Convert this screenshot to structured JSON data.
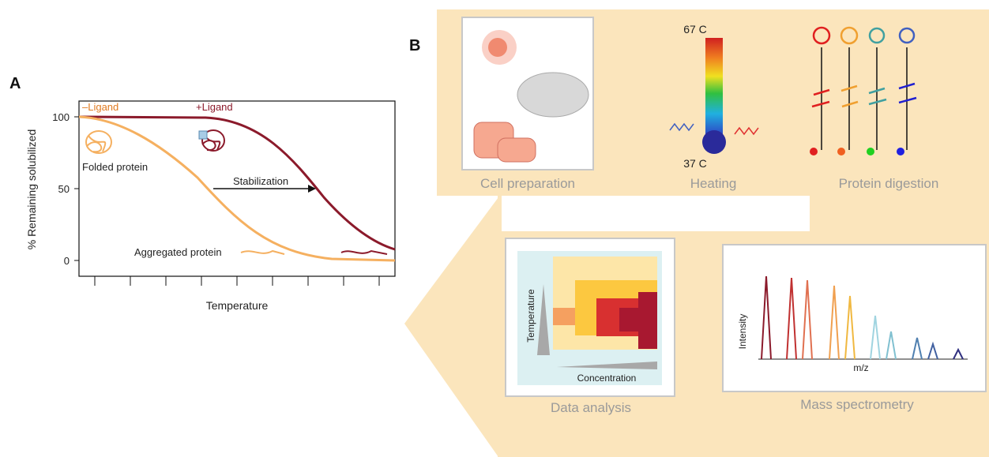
{
  "panel_a": {
    "label": "A",
    "y_axis_label": "% Remaining solubilized",
    "x_axis_label": "Temperature",
    "y_ticks": [
      100,
      50,
      0
    ],
    "curve_labels": [
      "–Ligand",
      "+Ligand"
    ],
    "annotations": [
      "Folded protein",
      "Stabilization",
      "Aggregated protein"
    ]
  },
  "panel_b": {
    "label": "B",
    "steps": [
      "Cell preparation",
      "Heating",
      "Protein digestion",
      "Mass spectrometry",
      "Data analysis"
    ],
    "thermometer": {
      "top": "67 C",
      "bottom": "37 C"
    },
    "heatmap_axes": [
      "Temperature",
      "Concentration"
    ],
    "spectrum_axes": [
      "Intensity",
      "m/z"
    ]
  }
}
